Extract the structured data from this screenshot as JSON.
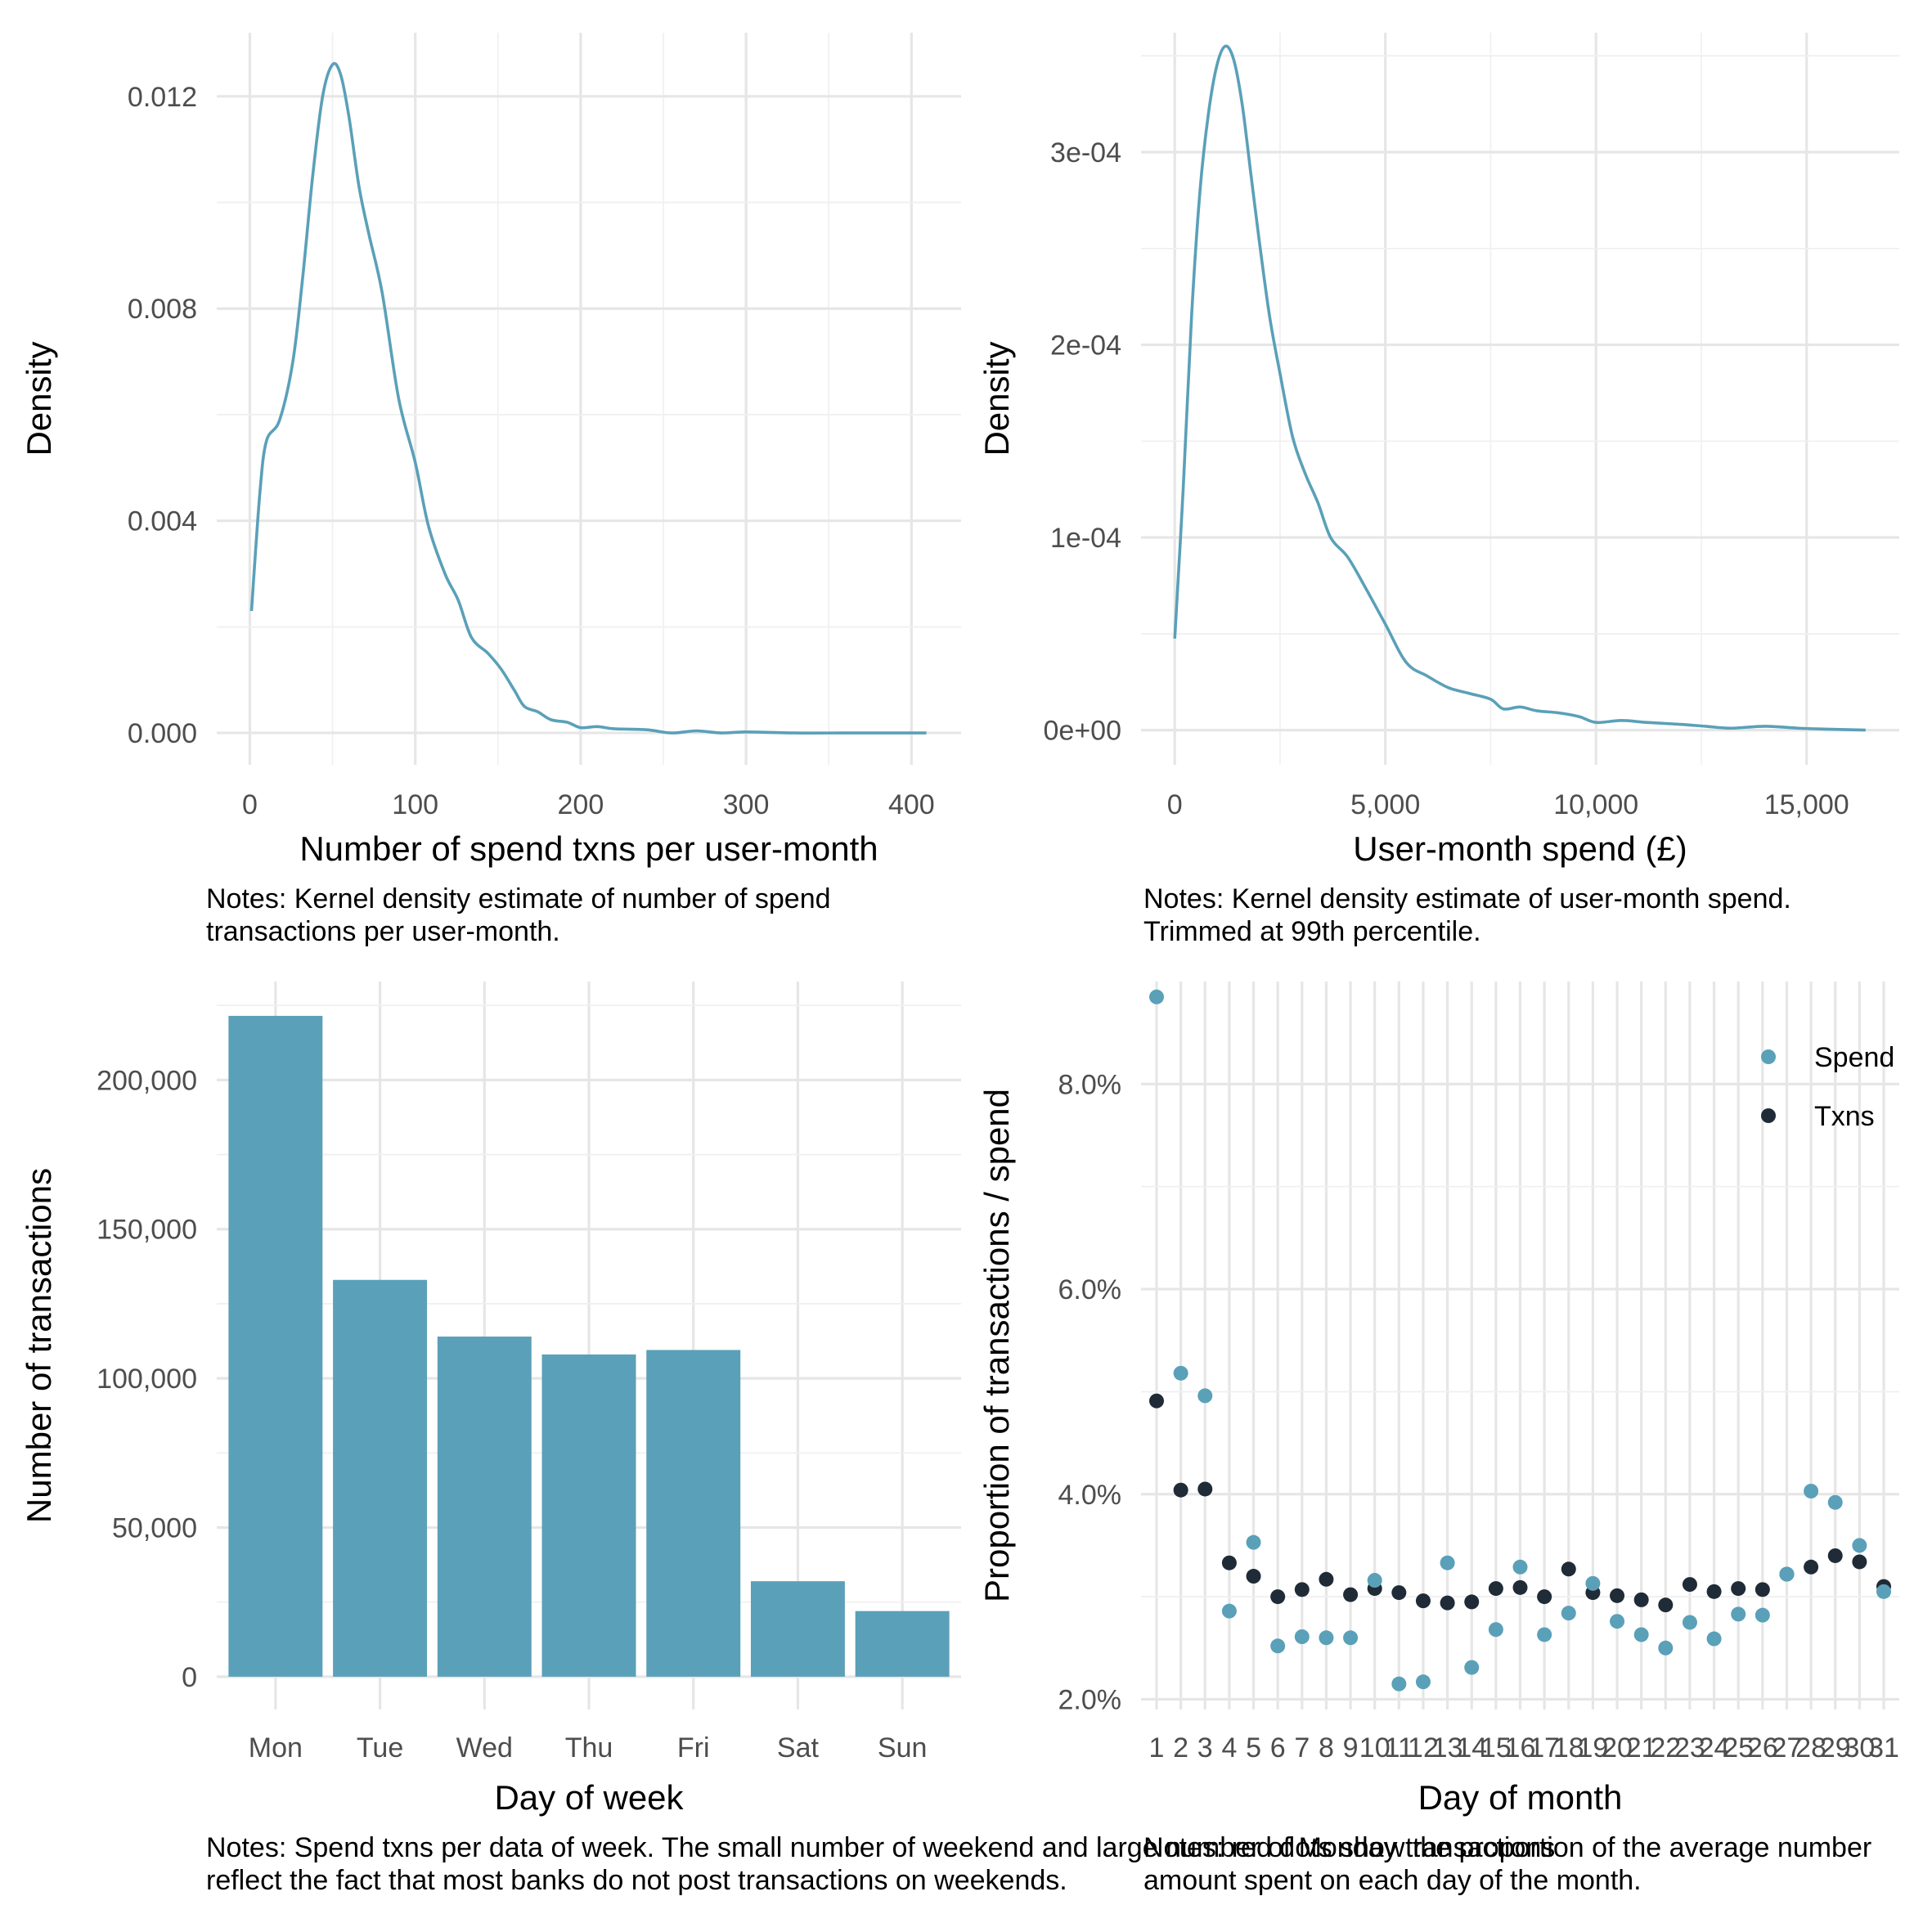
{
  "colors": {
    "spend": "#5aa0b8",
    "txns": "#1f2b36",
    "grid_major": "#e6e6e6",
    "grid_minor": "#f0f0f0",
    "background": "#ffffff"
  },
  "chart_data": [
    {
      "type": "line",
      "id": "txn-density",
      "title": "",
      "xlabel": "Number of spend txns per user-month",
      "ylabel": "Density",
      "xlim": [
        -20,
        430
      ],
      "ylim": [
        -0.0006,
        0.0132
      ],
      "x_ticks": [
        0,
        100,
        200,
        300,
        400
      ],
      "x_tick_labels": [
        "0",
        "100",
        "200",
        "300",
        "400"
      ],
      "y_ticks": [
        0.0,
        0.004,
        0.008,
        0.012
      ],
      "y_tick_labels": [
        "0.000",
        "0.004",
        "0.008",
        "0.012"
      ],
      "grid": true,
      "note_lines": [
        "Notes: Kernel density estimate of number of spend",
        "transactions per user-month."
      ],
      "series": [
        {
          "color": "#5aa0b8",
          "points": [
            [
              1,
              0.0023
            ],
            [
              6,
              0.0045
            ],
            [
              10,
              0.0055
            ],
            [
              18,
              0.0059
            ],
            [
              26,
              0.007
            ],
            [
              32,
              0.0086
            ],
            [
              38,
              0.0105
            ],
            [
              44,
              0.012
            ],
            [
              50,
              0.0126
            ],
            [
              55,
              0.0124
            ],
            [
              60,
              0.0116
            ],
            [
              66,
              0.0103
            ],
            [
              72,
              0.0094
            ],
            [
              80,
              0.0083
            ],
            [
              90,
              0.0063
            ],
            [
              100,
              0.0051
            ],
            [
              108,
              0.0039
            ],
            [
              118,
              0.003
            ],
            [
              126,
              0.0025
            ],
            [
              134,
              0.0018
            ],
            [
              144,
              0.0015
            ],
            [
              152,
              0.0012
            ],
            [
              160,
              0.0008
            ],
            [
              166,
              0.0005
            ],
            [
              174,
              0.0004
            ],
            [
              182,
              0.00025
            ],
            [
              192,
              0.0002
            ],
            [
              200,
              0.0001
            ],
            [
              210,
              0.00012
            ],
            [
              220,
              8e-05
            ],
            [
              240,
              6e-05
            ],
            [
              255,
              0.0
            ],
            [
              270,
              4e-05
            ],
            [
              285,
              0.0
            ],
            [
              300,
              2e-05
            ],
            [
              330,
              0.0
            ],
            [
              360,
              0.0
            ],
            [
              390,
              0.0
            ],
            [
              409,
              0.0
            ]
          ]
        }
      ]
    },
    {
      "type": "line",
      "id": "spend-density",
      "title": "",
      "xlabel": "User-month spend (£)",
      "ylabel": "Density",
      "xlim": [
        -800,
        17200
      ],
      "ylim": [
        -1.8e-05,
        0.000362
      ],
      "x_ticks": [
        0,
        5000,
        10000,
        15000
      ],
      "x_tick_labels": [
        "0",
        "5,000",
        "10,000",
        "15,000"
      ],
      "y_ticks": [
        0.0,
        0.0001,
        0.0002,
        0.0003
      ],
      "y_tick_labels": [
        "0e+00",
        "1e-04",
        "2e-04",
        "3e-04"
      ],
      "grid": true,
      "note_lines": [
        "Notes: Kernel density estimate of user-month spend.",
        "Trimmed at 99th percentile."
      ],
      "series": [
        {
          "color": "#5aa0b8",
          "points": [
            [
              0,
              4.75e-05
            ],
            [
              200,
              0.000125
            ],
            [
              400,
              0.000215
            ],
            [
              600,
              0.00028
            ],
            [
              800,
              0.00032
            ],
            [
              1000,
              0.000345
            ],
            [
              1200,
              0.000355
            ],
            [
              1400,
              0.000348
            ],
            [
              1600,
              0.000325
            ],
            [
              1800,
              0.00029
            ],
            [
              2000,
              0.000255
            ],
            [
              2250,
              0.000215
            ],
            [
              2500,
              0.000185
            ],
            [
              2800,
              0.000152
            ],
            [
              3100,
              0.000133
            ],
            [
              3400,
              0.000118
            ],
            [
              3700,
              0.0001
            ],
            [
              4100,
              9e-05
            ],
            [
              4500,
              7.5e-05
            ],
            [
              5000,
              5.5e-05
            ],
            [
              5500,
              3.5e-05
            ],
            [
              6000,
              2.8e-05
            ],
            [
              6500,
              2.2e-05
            ],
            [
              7000,
              1.9e-05
            ],
            [
              7500,
              1.6e-05
            ],
            [
              7800,
              1.1e-05
            ],
            [
              8200,
              1.2e-05
            ],
            [
              8600,
              1e-05
            ],
            [
              9100,
              9e-06
            ],
            [
              9600,
              7e-06
            ],
            [
              10000,
              4e-06
            ],
            [
              10600,
              5e-06
            ],
            [
              11200,
              4e-06
            ],
            [
              12000,
              3e-06
            ],
            [
              12600,
              2e-06
            ],
            [
              13200,
              1e-06
            ],
            [
              14000,
              2e-06
            ],
            [
              14800,
              1e-06
            ],
            [
              15500,
              5e-07
            ],
            [
              16400,
              0.0
            ]
          ]
        }
      ]
    },
    {
      "type": "bar",
      "id": "txns-by-weekday",
      "title": "",
      "xlabel": "Day of week",
      "ylabel": "Number of transactions",
      "ylim": [
        -11000,
        233000
      ],
      "categories": [
        "Mon",
        "Tue",
        "Wed",
        "Thu",
        "Fri",
        "Sat",
        "Sun"
      ],
      "values": [
        221500,
        133000,
        114000,
        108000,
        109500,
        32000,
        22000
      ],
      "y_ticks": [
        0,
        50000,
        100000,
        150000,
        200000
      ],
      "y_tick_labels": [
        "0",
        "50,000",
        "100,000",
        "150,000",
        "200,000"
      ],
      "grid": true,
      "note_lines": [
        "Notes: Spend txns per data of week. The small number of weekend and large number of Monday transactions",
        "reflect the fact that most banks do not post transactions on weekends."
      ],
      "series": [
        {
          "color": "#5aa0b8"
        }
      ]
    },
    {
      "type": "scatter",
      "id": "share-by-day-of-month",
      "title": "",
      "xlabel": "Day of month",
      "ylabel": "Proportion of transactions / spend",
      "ylim": [
        1.9,
        9.0
      ],
      "categories": [
        "1",
        "2",
        "3",
        "4",
        "5",
        "6",
        "7",
        "8",
        "9",
        "10",
        "11",
        "12",
        "13",
        "14",
        "15",
        "16",
        "17",
        "18",
        "19",
        "20",
        "21",
        "22",
        "23",
        "24",
        "25",
        "26",
        "27",
        "28",
        "29",
        "30",
        "31"
      ],
      "y_ticks": [
        2.0,
        4.0,
        6.0,
        8.0
      ],
      "y_tick_labels": [
        "2.0%",
        "4.0%",
        "6.0%",
        "8.0%"
      ],
      "grid": true,
      "legend": {
        "position": "top-right",
        "entries": [
          "Spend",
          "Txns"
        ]
      },
      "note_lines": [
        "Notes: red dots show the proportion of the average number",
        "amount spent on each day of the month."
      ],
      "series": [
        {
          "name": "Spend",
          "color": "#5aa0b8",
          "values": [
            8.85,
            5.18,
            4.96,
            2.86,
            3.53,
            2.52,
            2.61,
            2.6,
            2.6,
            3.16,
            2.15,
            2.17,
            3.33,
            2.31,
            2.68,
            3.29,
            2.63,
            2.84,
            3.13,
            2.76,
            2.63,
            2.5,
            2.75,
            2.59,
            2.83,
            2.82,
            3.22,
            4.03,
            3.92,
            3.5,
            3.05
          ]
        },
        {
          "name": "Txns",
          "color": "#1f2b36",
          "values": [
            4.91,
            4.04,
            4.05,
            3.33,
            3.2,
            3.0,
            3.07,
            3.17,
            3.02,
            3.08,
            3.04,
            2.96,
            2.94,
            2.95,
            3.08,
            3.09,
            3.0,
            3.27,
            3.04,
            3.01,
            2.97,
            2.92,
            3.12,
            3.05,
            3.08,
            3.07,
            3.22,
            3.29,
            3.4,
            3.34,
            3.1
          ]
        }
      ]
    }
  ]
}
